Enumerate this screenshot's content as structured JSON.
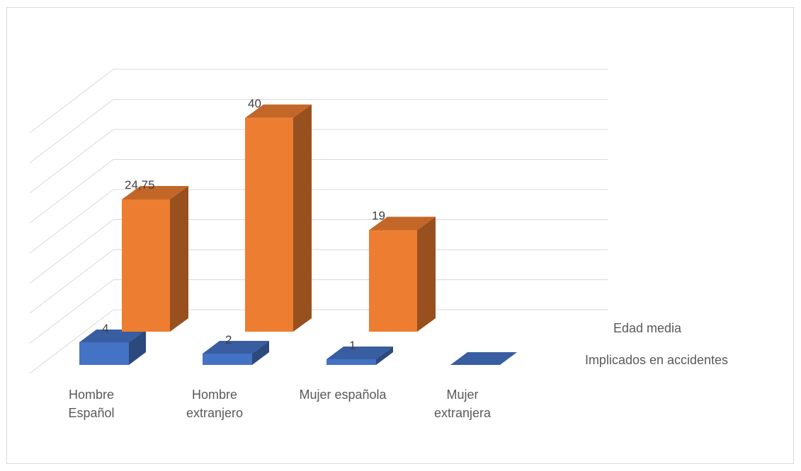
{
  "chart_data": {
    "type": "bar",
    "title": "",
    "xlabel": "",
    "ylabel": "",
    "categories": [
      [
        "Hombre",
        "Español"
      ],
      [
        "Hombre",
        "extranjero"
      ],
      [
        "Mujer española"
      ],
      [
        "Mujer",
        "extranjera"
      ]
    ],
    "series": [
      {
        "name": "Edad media",
        "values": [
          24.75,
          40,
          19,
          null
        ],
        "labels": [
          "24,75",
          "40",
          "19",
          ""
        ],
        "color": "#ED7D31"
      },
      {
        "name": "Implicados en accidentes",
        "values": [
          4,
          2,
          1,
          0
        ],
        "labels": [
          "4",
          "2",
          "1",
          ""
        ],
        "color": "#4472C4"
      }
    ],
    "ylim": [
      0,
      45
    ],
    "grid": true,
    "legend_position": "right"
  }
}
